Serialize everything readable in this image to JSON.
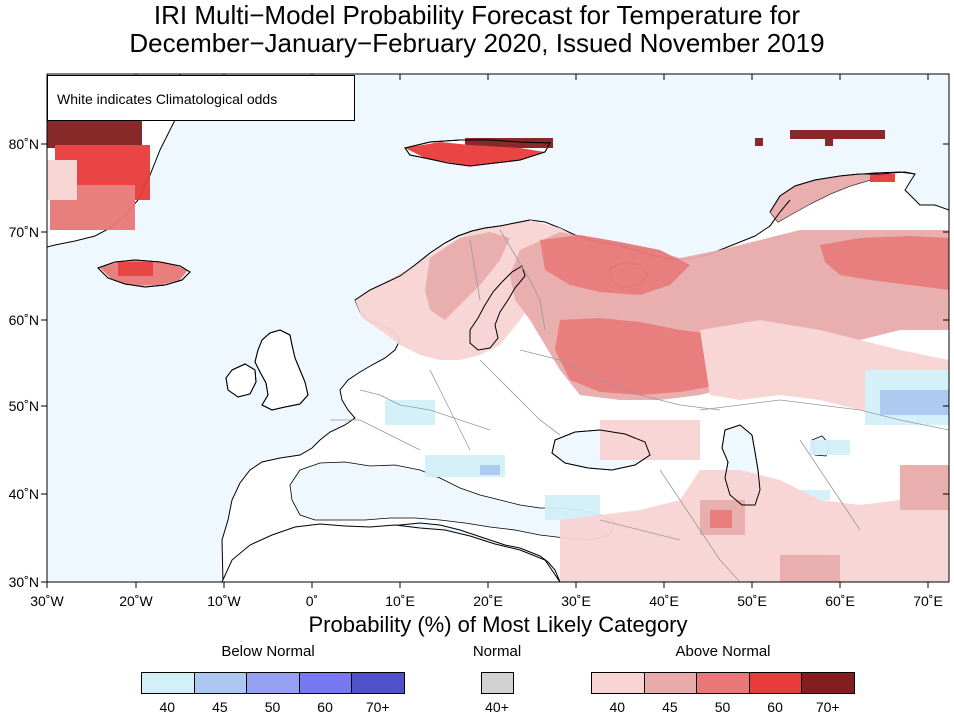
{
  "title": {
    "line1": "IRI Multi−Model Probability Forecast for Temperature for",
    "line2": "December−January−February 2020, Issued November 2019"
  },
  "map": {
    "climatology_note": "White indicates Climatological odds",
    "lat_labels": [
      "80˚N",
      "70˚N",
      "60˚N",
      "50˚N",
      "40˚N",
      "30˚N"
    ],
    "lon_labels": [
      "30˚W",
      "20˚W",
      "10˚W",
      "0˚",
      "10˚E",
      "20˚E",
      "30˚E",
      "40˚E",
      "50˚E",
      "60˚E",
      "70˚E"
    ],
    "ocean_color": "#f0f8ff",
    "land_color": "#ffffff"
  },
  "legend": {
    "title": "Probability (%) of Most Likely Category",
    "below_normal": {
      "label": "Below Normal",
      "bins": [
        "40",
        "45",
        "50",
        "60",
        "70+"
      ],
      "colors": [
        "#d2f0f8",
        "#aac8f0",
        "#96a0f0",
        "#7878f0",
        "#5050c8"
      ]
    },
    "normal": {
      "label": "Normal",
      "bins": [
        "40+"
      ],
      "colors": [
        "#d2d2d2"
      ]
    },
    "above_normal": {
      "label": "Above Normal",
      "bins": [
        "40",
        "45",
        "50",
        "60",
        "70+"
      ],
      "colors": [
        "#f8d4d4",
        "#e8aaaa",
        "#e87878",
        "#e83c3c",
        "#821e1e"
      ]
    }
  }
}
